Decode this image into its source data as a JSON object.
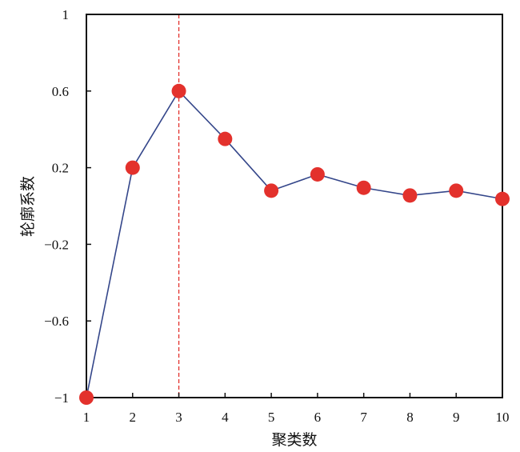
{
  "chart_data": {
    "type": "line",
    "title": "",
    "xlabel": "聚类数",
    "ylabel": "轮廓系数",
    "x": [
      1,
      2,
      3,
      4,
      5,
      6,
      7,
      8,
      9,
      10
    ],
    "series": [
      {
        "values": [
          -1.0,
          0.2,
          0.6,
          0.35,
          0.08,
          0.165,
          0.095,
          0.055,
          0.08,
          0.037
        ]
      }
    ],
    "xlim": [
      1,
      10
    ],
    "ylim": [
      -1,
      1
    ],
    "xticks": [
      "1",
      "2",
      "3",
      "4",
      "5",
      "6",
      "7",
      "8",
      "9",
      "10"
    ],
    "yticks": [
      {
        "value": 1,
        "label": "1"
      },
      {
        "value": 0.6,
        "label": "0.6"
      },
      {
        "value": 0.2,
        "label": "0.2"
      },
      {
        "value": -0.2,
        "label": "−0.2"
      },
      {
        "value": -0.6,
        "label": "−0.6"
      },
      {
        "value": -1,
        "label": "−1"
      }
    ],
    "reference_line": {
      "x": 3,
      "style": "dashed"
    },
    "grid": false,
    "colors": {
      "line": "#34468a",
      "marker": "#e3312c",
      "reference": "#e3312c",
      "axes": "#111111"
    }
  }
}
